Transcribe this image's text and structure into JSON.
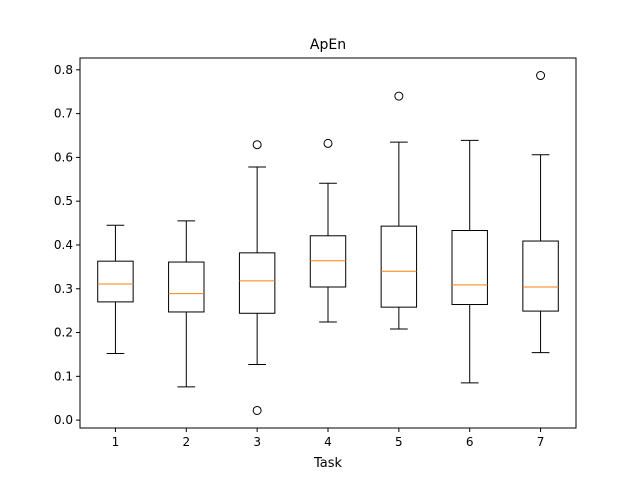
{
  "chart_data": {
    "type": "box",
    "title": "ApEn",
    "xlabel": "Task",
    "ylabel": "",
    "categories": [
      "1",
      "2",
      "3",
      "4",
      "5",
      "6",
      "7"
    ],
    "boxes": [
      {
        "whisker_low": 0.152,
        "q1": 0.27,
        "median": 0.311,
        "q3": 0.363,
        "whisker_high": 0.445,
        "outliers": []
      },
      {
        "whisker_low": 0.076,
        "q1": 0.247,
        "median": 0.289,
        "q3": 0.361,
        "whisker_high": 0.455,
        "outliers": []
      },
      {
        "whisker_low": 0.127,
        "q1": 0.244,
        "median": 0.318,
        "q3": 0.382,
        "whisker_high": 0.578,
        "outliers": [
          0.629,
          0.022
        ]
      },
      {
        "whisker_low": 0.224,
        "q1": 0.304,
        "median": 0.364,
        "q3": 0.421,
        "whisker_high": 0.541,
        "outliers": [
          0.632
        ]
      },
      {
        "whisker_low": 0.208,
        "q1": 0.258,
        "median": 0.34,
        "q3": 0.443,
        "whisker_high": 0.635,
        "outliers": [
          0.74
        ]
      },
      {
        "whisker_low": 0.085,
        "q1": 0.264,
        "median": 0.309,
        "q3": 0.433,
        "whisker_high": 0.639,
        "outliers": []
      },
      {
        "whisker_low": 0.154,
        "q1": 0.249,
        "median": 0.304,
        "q3": 0.409,
        "whisker_high": 0.606,
        "outliers": [
          0.787
        ]
      }
    ],
    "yticks": [
      "0.0",
      "0.1",
      "0.2",
      "0.3",
      "0.4",
      "0.5",
      "0.6",
      "0.7",
      "0.8"
    ],
    "ylim": [
      -0.018,
      0.827
    ],
    "grid": false,
    "colors": {
      "box": "#000000",
      "median": "#ff7f0e",
      "outlier": "#000000"
    }
  }
}
